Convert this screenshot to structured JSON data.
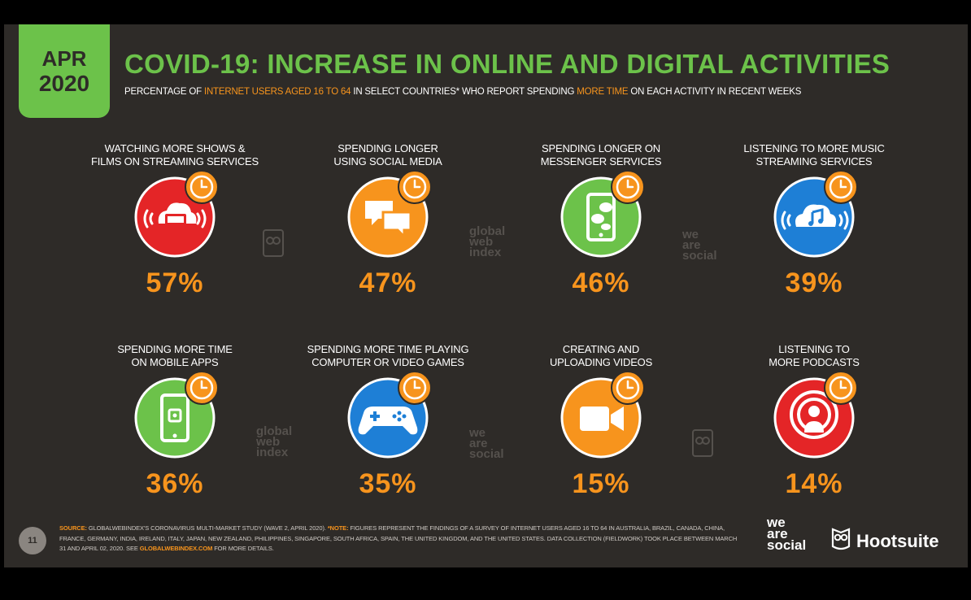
{
  "badge": {
    "month": "APR",
    "year": "2020"
  },
  "title": "COVID-19: INCREASE IN ONLINE AND DIGITAL ACTIVITIES",
  "subtitle": {
    "p1": "PERCENTAGE OF ",
    "p2": "INTERNET USERS AGED 16 TO 64",
    "p3": " IN SELECT COUNTRIES* WHO REPORT SPENDING ",
    "p4": "MORE TIME",
    "p5": " ON EACH ACTIVITY IN RECENT WEEKS"
  },
  "chart_data": {
    "type": "table",
    "categories": [
      "WATCHING MORE SHOWS & FILMS ON STREAMING SERVICES",
      "SPENDING LONGER USING SOCIAL MEDIA",
      "SPENDING LONGER ON MESSENGER SERVICES",
      "LISTENING TO MORE MUSIC STREAMING SERVICES",
      "SPENDING MORE TIME ON MOBILE APPS",
      "SPENDING MORE TIME PLAYING COMPUTER OR VIDEO GAMES",
      "CREATING AND UPLOADING VIDEOS",
      "LISTENING TO MORE PODCASTS"
    ],
    "values": [
      57,
      47,
      46,
      39,
      36,
      35,
      15,
      14
    ],
    "value_labels": [
      "57%",
      "47%",
      "46%",
      "39%",
      "36%",
      "35%",
      "15%",
      "14%"
    ]
  },
  "cards": [
    {
      "l1": "WATCHING MORE SHOWS &",
      "l2": "FILMS ON STREAMING SERVICES",
      "value": "57%",
      "color": "#e42527",
      "icon": "streaming-tv-icon"
    },
    {
      "l1": "SPENDING LONGER",
      "l2": "USING SOCIAL MEDIA",
      "value": "47%",
      "color": "#f7941d",
      "icon": "chat-bubbles-icon"
    },
    {
      "l1": "SPENDING LONGER ON",
      "l2": "MESSENGER SERVICES",
      "value": "46%",
      "color": "#6cc24a",
      "icon": "phone-messages-icon"
    },
    {
      "l1": "LISTENING TO MORE MUSIC",
      "l2": "STREAMING SERVICES",
      "value": "39%",
      "color": "#1e7fd6",
      "icon": "cloud-music-icon"
    },
    {
      "l1": "SPENDING MORE TIME",
      "l2": "ON MOBILE APPS",
      "value": "36%",
      "color": "#6cc24a",
      "icon": "mobile-app-icon"
    },
    {
      "l1": "SPENDING MORE TIME PLAYING",
      "l2": "COMPUTER OR VIDEO GAMES",
      "value": "35%",
      "color": "#1e7fd6",
      "icon": "gamepad-icon"
    },
    {
      "l1": "CREATING AND",
      "l2": "UPLOADING VIDEOS",
      "value": "15%",
      "color": "#f7941d",
      "icon": "video-camera-icon"
    },
    {
      "l1": "LISTENING TO",
      "l2": "MORE PODCASTS",
      "value": "14%",
      "color": "#e42527",
      "icon": "podcast-icon"
    }
  ],
  "watermarks": {
    "was": [
      "we",
      "are",
      "social"
    ],
    "gwi": [
      "global",
      "web",
      "index"
    ]
  },
  "footer": {
    "page_number": "11",
    "source_label": "SOURCE:",
    "source_text": " GLOBALWEBINDEX'S CORONAVIRUS MULTI-MARKET STUDY (WAVE 2, APRIL 2020). ",
    "note_label": "*NOTE:",
    "note_text": " FIGURES REPRESENT THE FINDINGS OF A SURVEY OF INTERNET USERS AGED 16 TO 64 IN AUSTRALIA, BRAZIL, CANADA, CHINA, FRANCE, GERMANY, INDIA, IRELAND, ITALY, JAPAN, NEW ZEALAND, PHILIPPINES, SINGAPORE, SOUTH AFRICA, SPAIN, THE UNITED KINGDOM, AND THE UNITED STATES. DATA COLLECTION (FIELDWORK) TOOK PLACE BETWEEN MARCH 31 AND APRIL 02, 2020. SEE ",
    "link": "GLOBALWEBINDEX.COM",
    "tail": " FOR MORE DETAILS."
  },
  "logos": {
    "was": [
      "we",
      "are",
      "social"
    ],
    "hootsuite": "Hootsuite"
  },
  "colors": {
    "green": "#6cc24a",
    "orange": "#f7941d",
    "red": "#e42527",
    "blue": "#1e7fd6",
    "background": "#2e2b28"
  }
}
